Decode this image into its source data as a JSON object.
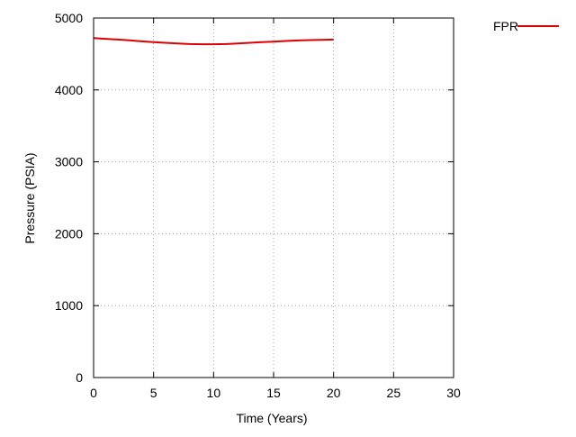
{
  "chart_data": {
    "type": "line",
    "title": "",
    "xlabel": "Time (Years)",
    "ylabel": "Pressure (PSIA)",
    "xlim": [
      0,
      30
    ],
    "ylim": [
      0,
      5000
    ],
    "x_ticks": [
      0,
      5,
      10,
      15,
      20,
      25,
      30
    ],
    "y_ticks": [
      0,
      1000,
      2000,
      3000,
      4000,
      5000
    ],
    "grid": true,
    "legend_position": "top-right, outside plot",
    "series": [
      {
        "name": "FPR",
        "color": "#dd0000",
        "x": [
          0,
          1,
          2,
          3,
          4,
          5,
          6,
          7,
          8,
          9,
          10,
          11,
          12,
          13,
          14,
          15,
          16,
          17,
          18,
          19,
          20
        ],
        "y": [
          4720,
          4710,
          4700,
          4690,
          4675,
          4665,
          4655,
          4645,
          4638,
          4635,
          4635,
          4638,
          4645,
          4655,
          4665,
          4672,
          4680,
          4688,
          4693,
          4697,
          4700
        ]
      }
    ]
  }
}
